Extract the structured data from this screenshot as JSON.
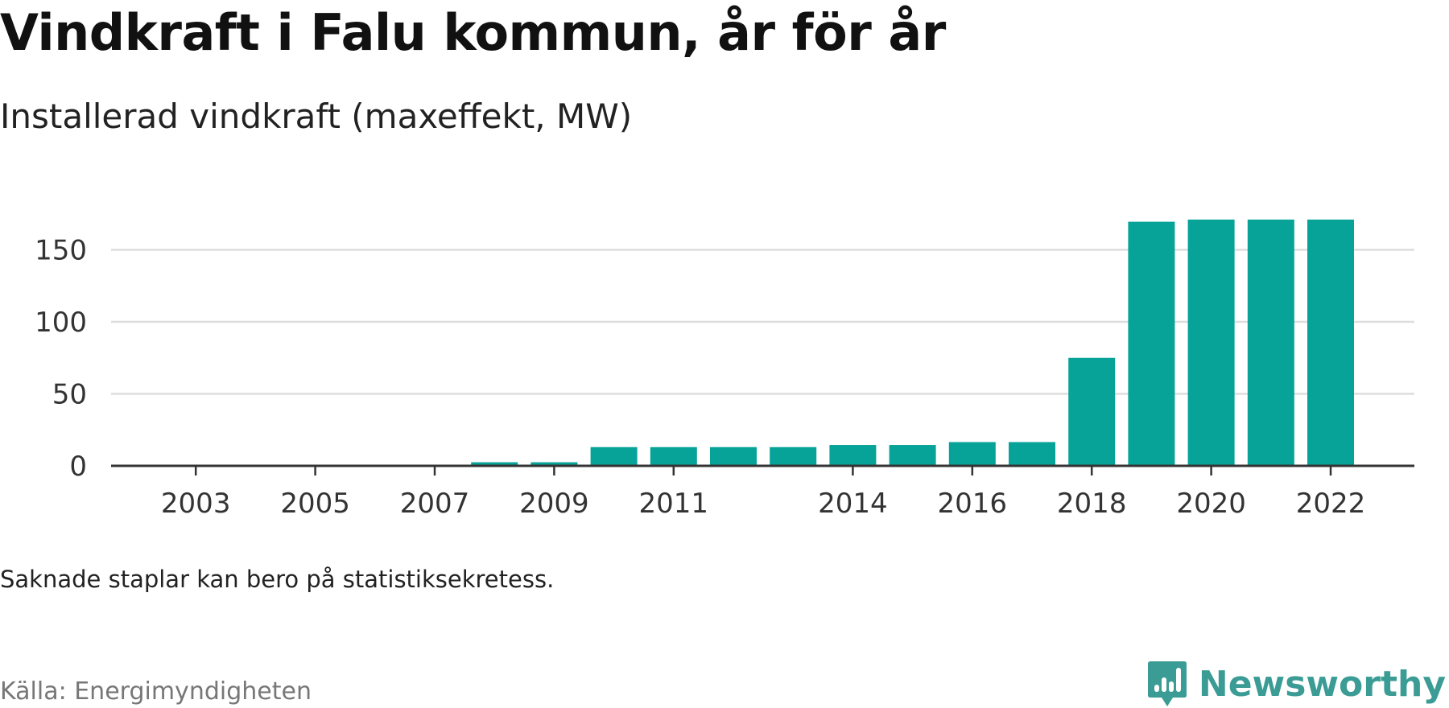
{
  "header": {
    "title": "Vindkraft i Falu kommun, år för år",
    "subtitle": "Installerad vindkraft (maxeffekt, MW)"
  },
  "footer": {
    "note": "Saknade staplar kan bero på statistiksekretess.",
    "source": "Källa: Energimyndigheten",
    "brand": "Newsworthy",
    "brand_icon": "newsworthy-logo-icon"
  },
  "colors": {
    "bar": "#07a398",
    "grid": "#dddddd",
    "axis": "#333333"
  },
  "chart_data": {
    "type": "bar",
    "title": "Vindkraft i Falu kommun, år för år",
    "ylabel": "",
    "xlabel": "",
    "ylim": [
      0,
      170
    ],
    "yticks": [
      0,
      50,
      100,
      150
    ],
    "grid": true,
    "categories": [
      2002,
      2003,
      2004,
      2005,
      2006,
      2007,
      2008,
      2009,
      2010,
      2011,
      2012,
      2013,
      2014,
      2015,
      2016,
      2017,
      2018,
      2019,
      2020,
      2021,
      2022
    ],
    "values": [
      0,
      0,
      0,
      0,
      0,
      0,
      2.5,
      2.5,
      13,
      13,
      13,
      13,
      14.5,
      14.5,
      16.5,
      16.5,
      75,
      169.5,
      171,
      171,
      171
    ],
    "xtick_labels": [
      "2003",
      "2005",
      "2007",
      "2009",
      "2011",
      "2014",
      "2016",
      "2018",
      "2020",
      "2022"
    ]
  }
}
